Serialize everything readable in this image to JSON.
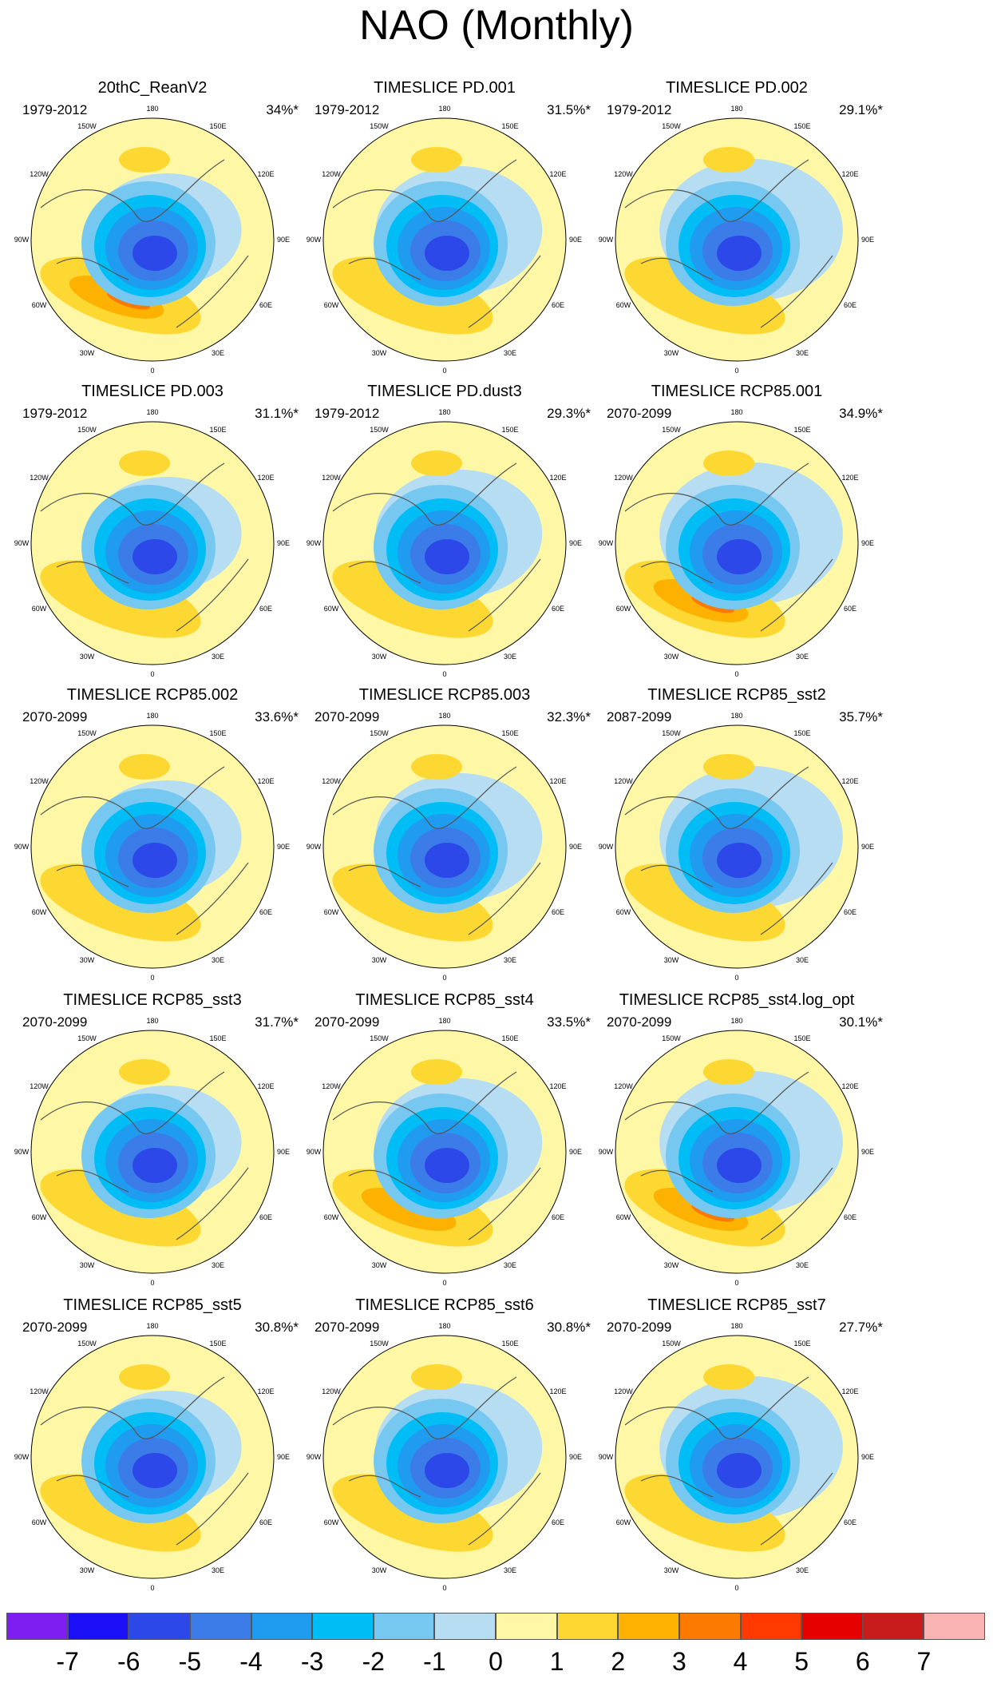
{
  "title": "NAO (Monthly)",
  "longitude_labels": [
    "180",
    "150E",
    "120E",
    "90E",
    "60E",
    "30E",
    "0",
    "30W",
    "60W",
    "90W",
    "120W",
    "150W"
  ],
  "panels": [
    {
      "title": "20thC_ReanV2",
      "period": "1979-2012",
      "variance": "34%*"
    },
    {
      "title": "TIMESLICE PD.001",
      "period": "1979-2012",
      "variance": "31.5%*"
    },
    {
      "title": "TIMESLICE PD.002",
      "period": "1979-2012",
      "variance": "29.1%*"
    },
    {
      "title": "TIMESLICE PD.003",
      "period": "1979-2012",
      "variance": "31.1%*"
    },
    {
      "title": "TIMESLICE PD.dust3",
      "period": "1979-2012",
      "variance": "29.3%*"
    },
    {
      "title": "TIMESLICE RCP85.001",
      "period": "2070-2099",
      "variance": "34.9%*"
    },
    {
      "title": "TIMESLICE RCP85.002",
      "period": "2070-2099",
      "variance": "33.6%*"
    },
    {
      "title": "TIMESLICE RCP85.003",
      "period": "2070-2099",
      "variance": "32.3%*"
    },
    {
      "title": "TIMESLICE RCP85_sst2",
      "period": "2087-2099",
      "variance": "35.7%*"
    },
    {
      "title": "TIMESLICE RCP85_sst3",
      "period": "2070-2099",
      "variance": "31.7%*"
    },
    {
      "title": "TIMESLICE RCP85_sst4",
      "period": "2070-2099",
      "variance": "33.5%*"
    },
    {
      "title": "TIMESLICE RCP85_sst4.log_opt",
      "period": "2070-2099",
      "variance": "30.1%*"
    },
    {
      "title": "TIMESLICE RCP85_sst5",
      "period": "2070-2099",
      "variance": "30.8%*"
    },
    {
      "title": "TIMESLICE RCP85_sst6",
      "period": "2070-2099",
      "variance": "30.8%*"
    },
    {
      "title": "TIMESLICE RCP85_sst7",
      "period": "2070-2099",
      "variance": "27.7%*"
    }
  ],
  "colorbar": {
    "colors": [
      "#7f1ef0",
      "#1a0ff5",
      "#2d48e8",
      "#3b7ce8",
      "#1f9bf0",
      "#00bdf5",
      "#76c8f0",
      "#b6ddf2",
      "#fef8a6",
      "#fed832",
      "#fdb100",
      "#fd7a00",
      "#fe3a00",
      "#e60000",
      "#c81b1b",
      "#f9b3b3"
    ],
    "ticks": [
      "-7",
      "-6",
      "-5",
      "-4",
      "-3",
      "-2",
      "-1",
      "0",
      "1",
      "2",
      "3",
      "4",
      "5",
      "6",
      "7"
    ]
  }
}
